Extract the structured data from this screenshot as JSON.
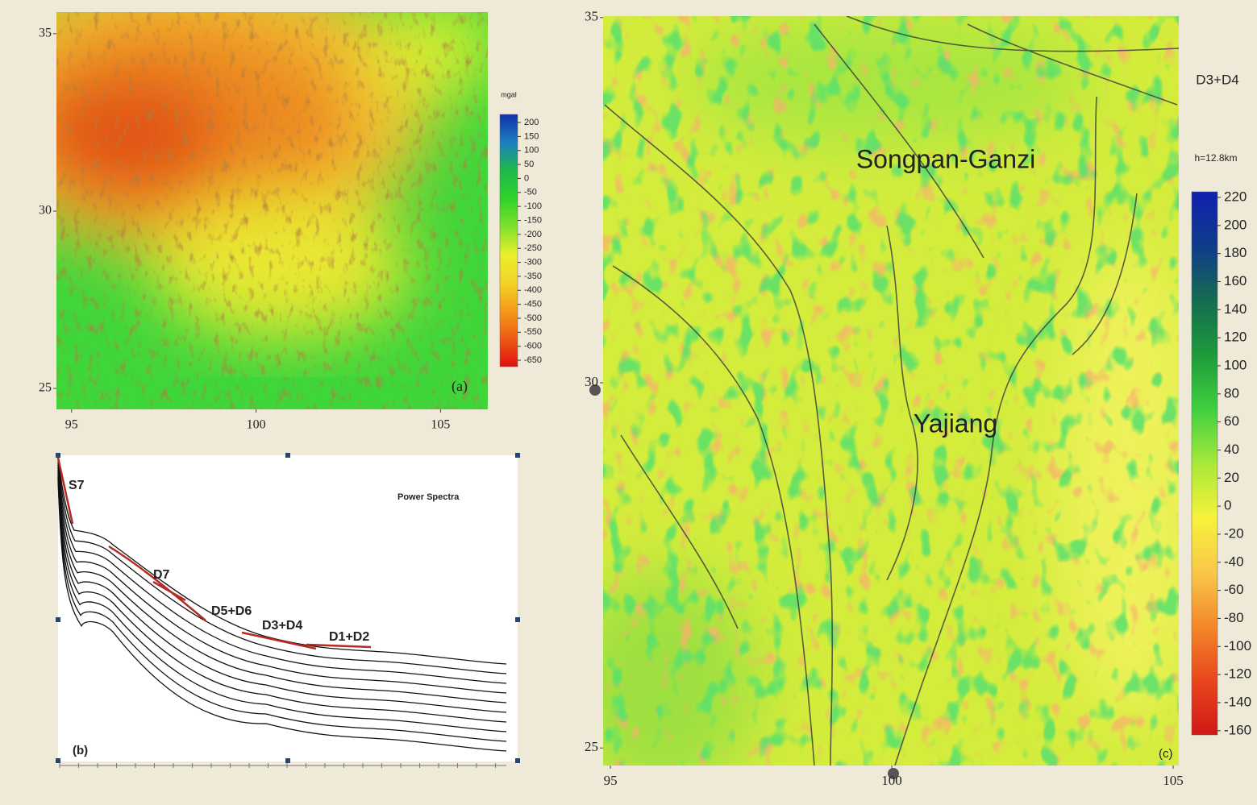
{
  "panel_a": {
    "label": "(a)",
    "unit": "mgal",
    "xticks": [
      95,
      100,
      105
    ],
    "yticks": [
      35,
      30,
      25
    ],
    "xlim": [
      94.59,
      106.28
    ],
    "ylim": [
      24.41,
      35.61
    ],
    "colorbar": {
      "ticks": [
        200,
        150,
        100,
        50,
        0,
        -50,
        -100,
        -150,
        -200,
        -250,
        -300,
        -350,
        -400,
        -450,
        -500,
        -550,
        -600,
        -650
      ],
      "lim": [
        -673,
        229
      ],
      "colors": [
        "#e01010",
        "#ee5a14",
        "#f59a1a",
        "#f4d428",
        "#e8ef2c",
        "#7fe12c",
        "#2fd22a",
        "#1fb84a",
        "#1a7fc0",
        "#1230a8"
      ]
    }
  },
  "panel_b": {
    "label": "(b)",
    "title": "Power Spectra",
    "annotations": [
      "S7",
      "D7",
      "D5+D6",
      "D3+D4",
      "D1+D2"
    ]
  },
  "panel_c": {
    "label": "(c)",
    "title": "D3+D4",
    "depth": "h=12.8km",
    "regions": [
      "Songpan-Ganzi",
      "Yajiang"
    ],
    "xticks": [
      95,
      100,
      105
    ],
    "yticks": [
      35,
      30,
      25
    ],
    "xlim": [
      94.87,
      105.1
    ],
    "ylim": [
      24.76,
      35.02
    ],
    "colorbar": {
      "ticks": [
        220,
        200,
        180,
        160,
        140,
        120,
        100,
        80,
        60,
        40,
        20,
        0,
        -20,
        -40,
        -60,
        -80,
        -100,
        -120,
        -140,
        -160
      ],
      "lim": [
        -163,
        224
      ],
      "colors": [
        "#d01818",
        "#e8461c",
        "#f3882a",
        "#f9c84a",
        "#f6f23a",
        "#a8e83a",
        "#3ed040",
        "#1d9a3a",
        "#156c50",
        "#103c8a",
        "#0f20b0"
      ]
    }
  }
}
